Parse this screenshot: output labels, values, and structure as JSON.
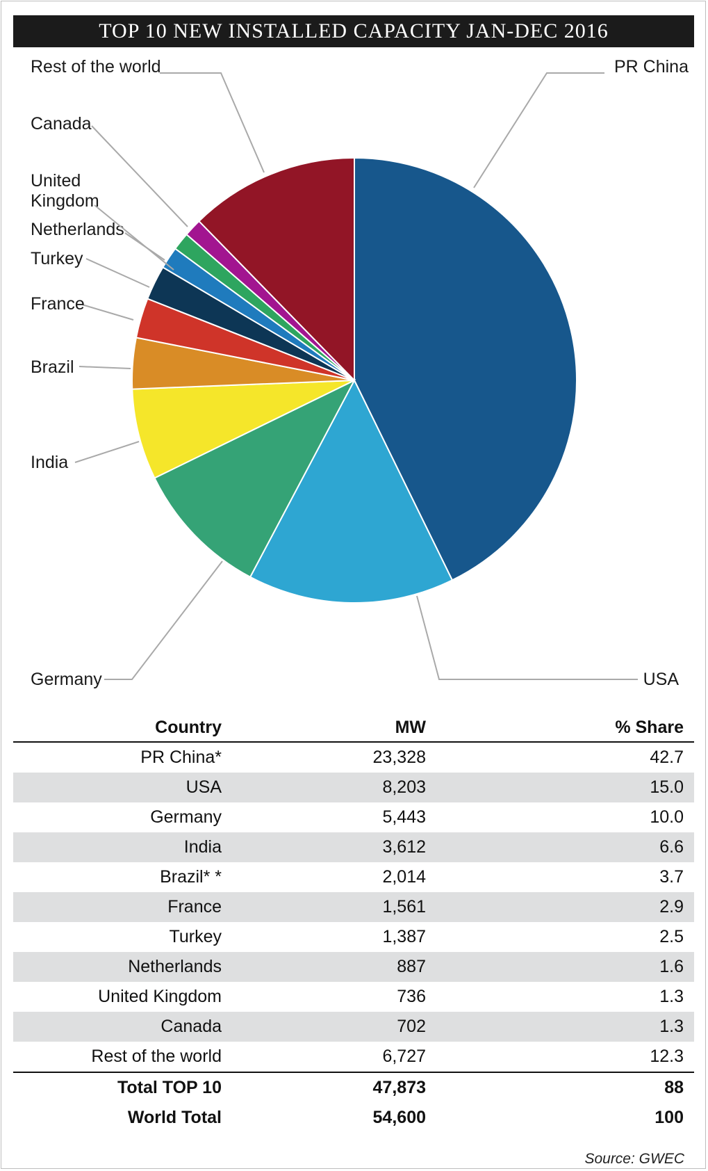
{
  "title": "TOP 10 NEW INSTALLED CAPACITY JAN-DEC 2016",
  "chart_data": {
    "type": "pie",
    "title": "TOP 10 NEW INSTALLED CAPACITY JAN-DEC 2016",
    "slices": [
      {
        "label": "PR China",
        "value": 42.7,
        "color": "#17578c"
      },
      {
        "label": "USA",
        "value": 15.0,
        "color": "#2ea6d2"
      },
      {
        "label": "Germany",
        "value": 10.0,
        "color": "#35a376"
      },
      {
        "label": "India",
        "value": 6.6,
        "color": "#f5e62a"
      },
      {
        "label": "Brazil",
        "value": 3.7,
        "color": "#d98c26"
      },
      {
        "label": "France",
        "value": 2.9,
        "color": "#cf3429"
      },
      {
        "label": "Turkey",
        "value": 2.5,
        "color": "#0d3655"
      },
      {
        "label": "Netherlands",
        "value": 1.6,
        "color": "#1f7bbd"
      },
      {
        "label": "United Kingdom",
        "value": 1.3,
        "color": "#2ea55f"
      },
      {
        "label": "Canada",
        "value": 1.3,
        "color": "#a21590"
      },
      {
        "label": "Rest of the world",
        "value": 12.3,
        "color": "#921526"
      }
    ]
  },
  "table": {
    "headers": {
      "country": "Country",
      "mw": "MW",
      "share": "% Share"
    },
    "rows": [
      {
        "country": "PR China*",
        "mw": "23,328",
        "share": "42.7"
      },
      {
        "country": "USA",
        "mw": "8,203",
        "share": "15.0"
      },
      {
        "country": "Germany",
        "mw": "5,443",
        "share": "10.0"
      },
      {
        "country": "India",
        "mw": "3,612",
        "share": "6.6"
      },
      {
        "country": "Brazil* *",
        "mw": "2,014",
        "share": "3.7"
      },
      {
        "country": "France",
        "mw": "1,561",
        "share": "2.9"
      },
      {
        "country": "Turkey",
        "mw": "1,387",
        "share": "2.5"
      },
      {
        "country": "Netherlands",
        "mw": "887",
        "share": "1.6"
      },
      {
        "country": "United Kingdom",
        "mw": "736",
        "share": "1.3"
      },
      {
        "country": "Canada",
        "mw": "702",
        "share": "1.3"
      },
      {
        "country": "Rest of the world",
        "mw": "6,727",
        "share": "12.3"
      }
    ],
    "totals": [
      {
        "country": "Total TOP 10",
        "mw": "47,873",
        "share": "88"
      },
      {
        "country": "World Total",
        "mw": "54,600",
        "share": "100"
      }
    ]
  },
  "source": "Source: GWEC"
}
